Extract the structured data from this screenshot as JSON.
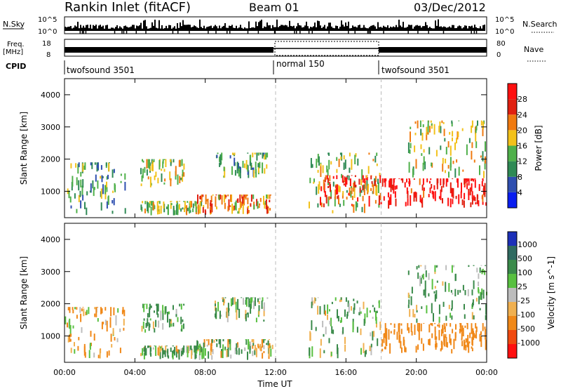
{
  "header": {
    "station": "Rankin Inlet (fitACF)",
    "beam": "Beam 01",
    "date": "03/Dec/2012"
  },
  "top_panels": {
    "nsky_label": "N.Sky",
    "nsearch_label": "N.Search",
    "nsky_ticks_left": [
      "10^5",
      "10^0"
    ],
    "nsky_ticks_right": [
      "10^5",
      "10^0"
    ],
    "freq_label": "Freq.",
    "freq_unit": "[MHz]",
    "freq_ticks": [
      "18",
      "8"
    ],
    "nave_label": "Nave",
    "nave_ticks": [
      "80",
      "0"
    ],
    "cpid_label": "CPID",
    "modes": [
      "twofsound 3501",
      "normal 150",
      "twofsound 3501"
    ]
  },
  "axes": {
    "ylabel": "Slant Range [km]",
    "yticks": [
      "1000",
      "2000",
      "3000",
      "4000"
    ],
    "xticks": [
      "00:00",
      "04:00",
      "08:00",
      "12:00",
      "16:00",
      "20:00",
      "00:00"
    ],
    "xlabel": "Time UT"
  },
  "colorbars": {
    "power": {
      "label": "Power [dB]",
      "ticks": [
        "4",
        "8",
        "12",
        "16",
        "20",
        "24",
        "28"
      ],
      "colors": [
        "#0a1ef0",
        "#2f4fb0",
        "#2f8a55",
        "#4fb04a",
        "#f2c11a",
        "#f07a10",
        "#e02010",
        "#ff1010"
      ]
    },
    "velocity": {
      "label": "Velocity [m s^-1]",
      "ticks": [
        "1000",
        "500",
        "100",
        "25",
        "-25",
        "-100",
        "-500",
        "-1000"
      ],
      "colors": [
        "#1c30b8",
        "#2f6a60",
        "#3a8a4a",
        "#58c040",
        "#bdbdbd",
        "#f0b050",
        "#f08818",
        "#f04a10",
        "#ff1010"
      ]
    }
  },
  "chart_data": [
    {
      "type": "heatmap",
      "title": "Power",
      "xlabel": "Time UT",
      "ylabel": "Slant Range [km]",
      "xlim": [
        0,
        24
      ],
      "ylim": [
        180,
        4500
      ],
      "clabel": "Power [dB]",
      "clim": [
        0,
        30
      ],
      "regions": [
        {
          "t0": 0.0,
          "t1": 3.5,
          "r0": 250,
          "r1": 1900,
          "value": 10
        },
        {
          "t0": 4.3,
          "t1": 7.8,
          "r0": 250,
          "r1": 700,
          "value": 14
        },
        {
          "t0": 4.3,
          "t1": 6.8,
          "r0": 1100,
          "r1": 2000,
          "value": 16
        },
        {
          "t0": 7.5,
          "t1": 11.8,
          "r0": 250,
          "r1": 900,
          "value": 20
        },
        {
          "t0": 8.5,
          "t1": 11.5,
          "r0": 1400,
          "r1": 2200,
          "value": 12
        },
        {
          "t0": 13.8,
          "t1": 18.0,
          "r0": 300,
          "r1": 2200,
          "value": 14
        },
        {
          "t0": 14.5,
          "t1": 18.0,
          "r0": 500,
          "r1": 1500,
          "value": 24
        },
        {
          "t0": 18.0,
          "t1": 24.0,
          "r0": 450,
          "r1": 1400,
          "value": 28
        },
        {
          "t0": 19.5,
          "t1": 24.0,
          "r0": 1400,
          "r1": 3200,
          "value": 16
        }
      ]
    },
    {
      "type": "heatmap",
      "title": "Velocity",
      "xlabel": "Time UT",
      "ylabel": "Slant Range [km]",
      "xlim": [
        0,
        24
      ],
      "ylim": [
        180,
        4500
      ],
      "clabel": "Velocity [m s^-1]",
      "clim": [
        -1000,
        1000
      ],
      "regions": [
        {
          "t0": 0.0,
          "t1": 3.5,
          "r0": 250,
          "r1": 1900,
          "value": -120
        },
        {
          "t0": 4.3,
          "t1": 7.8,
          "r0": 250,
          "r1": 700,
          "value": 60
        },
        {
          "t0": 4.3,
          "t1": 6.8,
          "r0": 1100,
          "r1": 2000,
          "value": 150
        },
        {
          "t0": 8.5,
          "t1": 11.5,
          "r0": 1400,
          "r1": 2200,
          "value": 120
        },
        {
          "t0": 7.5,
          "t1": 11.8,
          "r0": 250,
          "r1": 900,
          "value": 40
        },
        {
          "t0": 13.8,
          "t1": 18.0,
          "r0": 300,
          "r1": 2200,
          "value": 80
        },
        {
          "t0": 18.0,
          "t1": 24.0,
          "r0": 450,
          "r1": 1400,
          "value": -300
        },
        {
          "t0": 19.5,
          "t1": 24.0,
          "r0": 1400,
          "r1": 3200,
          "value": 100
        }
      ]
    }
  ]
}
